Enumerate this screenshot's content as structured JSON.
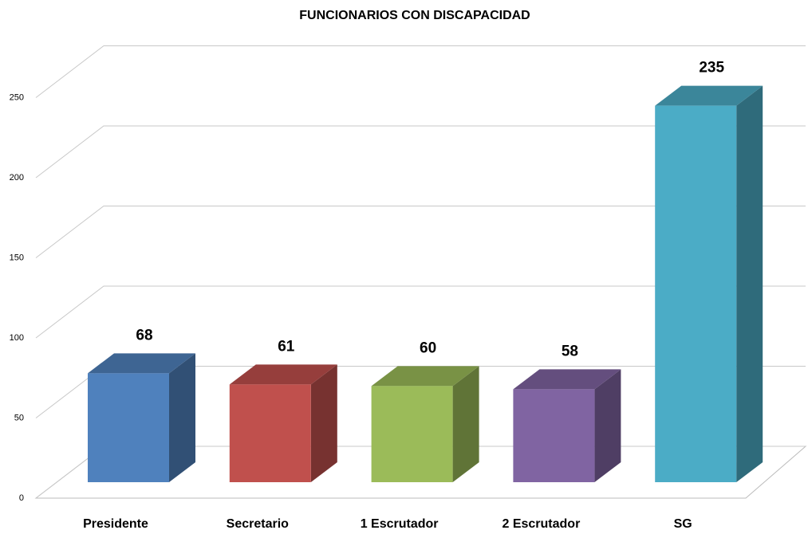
{
  "chart_data": {
    "type": "bar3d",
    "title": "FUNCIONARIOS CON DISCAPACIDAD",
    "categories": [
      "Presidente",
      "Secretario",
      "1 Escrutador",
      "2 Escrutador",
      "SG"
    ],
    "values": [
      68,
      61,
      60,
      58,
      235
    ],
    "colors": [
      "#4f81bd",
      "#c0504d",
      "#9bbb59",
      "#8064a2",
      "#4bacc6"
    ],
    "ylim": [
      0,
      250
    ],
    "yticks": [
      0,
      50,
      100,
      150,
      200,
      250
    ],
    "grid": true
  }
}
